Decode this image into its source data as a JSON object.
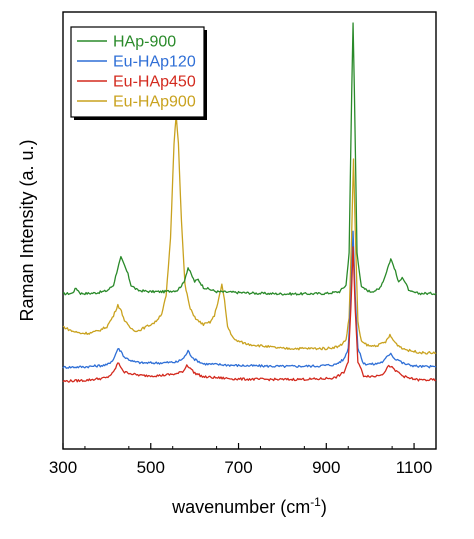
{
  "chart_data": {
    "type": "line",
    "title": "",
    "xlabel": "wavenumber (cm",
    "xlabel_sup": "-1",
    "xlabel_suffix": ")",
    "ylabel": "Raman Intensity  (a. u.)",
    "xlim": [
      300,
      1150
    ],
    "ylim": [
      0,
      100
    ],
    "xticks": [
      "300",
      "500",
      "700",
      "900",
      "1100"
    ],
    "xtick_values": [
      300,
      500,
      700,
      900,
      1100
    ],
    "y_tick_labels_shown": false,
    "legend_position": "top-left",
    "series": [
      {
        "name": "HAp-900",
        "color": "#2a8a2a",
        "baseline": 35.5,
        "x": [
          300,
          320,
          330,
          340,
          360,
          380,
          400,
          415,
          425,
          432,
          440,
          448,
          455,
          470,
          500,
          530,
          560,
          575,
          585,
          592,
          600,
          608,
          620,
          650,
          700,
          750,
          800,
          850,
          900,
          930,
          945,
          952,
          958,
          961,
          964,
          970,
          980,
          1000,
          1020,
          1032,
          1040,
          1047,
          1055,
          1065,
          1073,
          1080,
          1090,
          1110,
          1150
        ],
        "y": [
          35.5,
          35.6,
          36.8,
          35.6,
          35.6,
          35.8,
          36.2,
          37.5,
          41.5,
          43.8,
          42,
          40,
          37.5,
          36.3,
          36,
          36,
          36.3,
          38,
          41.5,
          40,
          38.3,
          38.8,
          37,
          36,
          35.8,
          35.6,
          35.5,
          35.5,
          35.6,
          36,
          37.5,
          45,
          82,
          97.5,
          82,
          45,
          37,
          36,
          36.5,
          39,
          41.5,
          43.5,
          41.5,
          38,
          39.5,
          38,
          36,
          35.6,
          35.6
        ]
      },
      {
        "name": "Eu-HAp120",
        "color": "#2f6fd6",
        "baseline": 18.5,
        "x": [
          300,
          350,
          400,
          415,
          425,
          432,
          440,
          448,
          460,
          480,
          520,
          560,
          575,
          585,
          592,
          600,
          620,
          700,
          800,
          880,
          920,
          940,
          950,
          956,
          961,
          966,
          972,
          985,
          1010,
          1030,
          1040,
          1047,
          1055,
          1065,
          1073,
          1085,
          1110,
          1150
        ],
        "y": [
          18.7,
          18.8,
          19.2,
          20.5,
          23,
          22.4,
          21,
          20.6,
          20,
          19.7,
          19.7,
          19.9,
          20.8,
          22.4,
          21.4,
          20.5,
          19.5,
          19.1,
          18.9,
          19,
          19.3,
          20.5,
          23,
          35,
          50,
          35,
          23,
          19.5,
          19.4,
          20,
          21.3,
          22,
          20.7,
          20.4,
          19.7,
          19.3,
          18.9,
          18.8
        ]
      },
      {
        "name": "Eu-HAp450",
        "color": "#d32a1e",
        "baseline": 15.5,
        "x": [
          300,
          350,
          400,
          415,
          425,
          432,
          440,
          448,
          460,
          480,
          520,
          560,
          575,
          582,
          590,
          598,
          620,
          700,
          800,
          880,
          920,
          940,
          950,
          956,
          961,
          966,
          972,
          985,
          1010,
          1030,
          1040,
          1047,
          1055,
          1065,
          1073,
          1085,
          1110,
          1150
        ],
        "y": [
          15.5,
          15.7,
          16.3,
          17.5,
          19.7,
          18.8,
          17.5,
          17.5,
          17.1,
          16.8,
          16.8,
          17.2,
          17.9,
          19.2,
          18.6,
          17.5,
          16.5,
          16,
          15.9,
          16,
          16.3,
          17.5,
          20,
          32,
          46,
          32,
          20,
          16.8,
          16.6,
          17.3,
          18.8,
          19,
          18,
          17.5,
          16.8,
          16.3,
          15.8,
          15.8
        ]
      },
      {
        "name": "Eu-HAp900",
        "color": "#c9a21f",
        "baseline": 22.0,
        "x": [
          300,
          320,
          340,
          360,
          380,
          400,
          415,
          425,
          433,
          440,
          450,
          460,
          470,
          490,
          510,
          525,
          535,
          545,
          553,
          558,
          563,
          570,
          578,
          590,
          605,
          620,
          635,
          645,
          655,
          662,
          668,
          675,
          690,
          720,
          760,
          800,
          850,
          900,
          930,
          945,
          952,
          958,
          962,
          966,
          972,
          980,
          1000,
          1020,
          1035,
          1045,
          1052,
          1060,
          1075,
          1090,
          1120,
          1150
        ],
        "y": [
          28,
          27,
          26.5,
          26.5,
          27,
          28,
          30.5,
          33,
          31.5,
          29.5,
          28,
          27.3,
          27,
          28,
          29,
          31,
          35,
          48,
          70,
          76.5,
          70,
          52,
          37.5,
          32,
          29.5,
          28.5,
          29,
          30.5,
          34.5,
          37.5,
          34,
          28,
          25,
          24,
          23.5,
          23,
          23,
          23,
          23.5,
          25,
          30,
          50,
          66.5,
          50,
          29,
          24.5,
          23.5,
          23.8,
          24.5,
          26,
          25,
          24,
          23,
          22.5,
          22,
          22
        ]
      }
    ]
  }
}
